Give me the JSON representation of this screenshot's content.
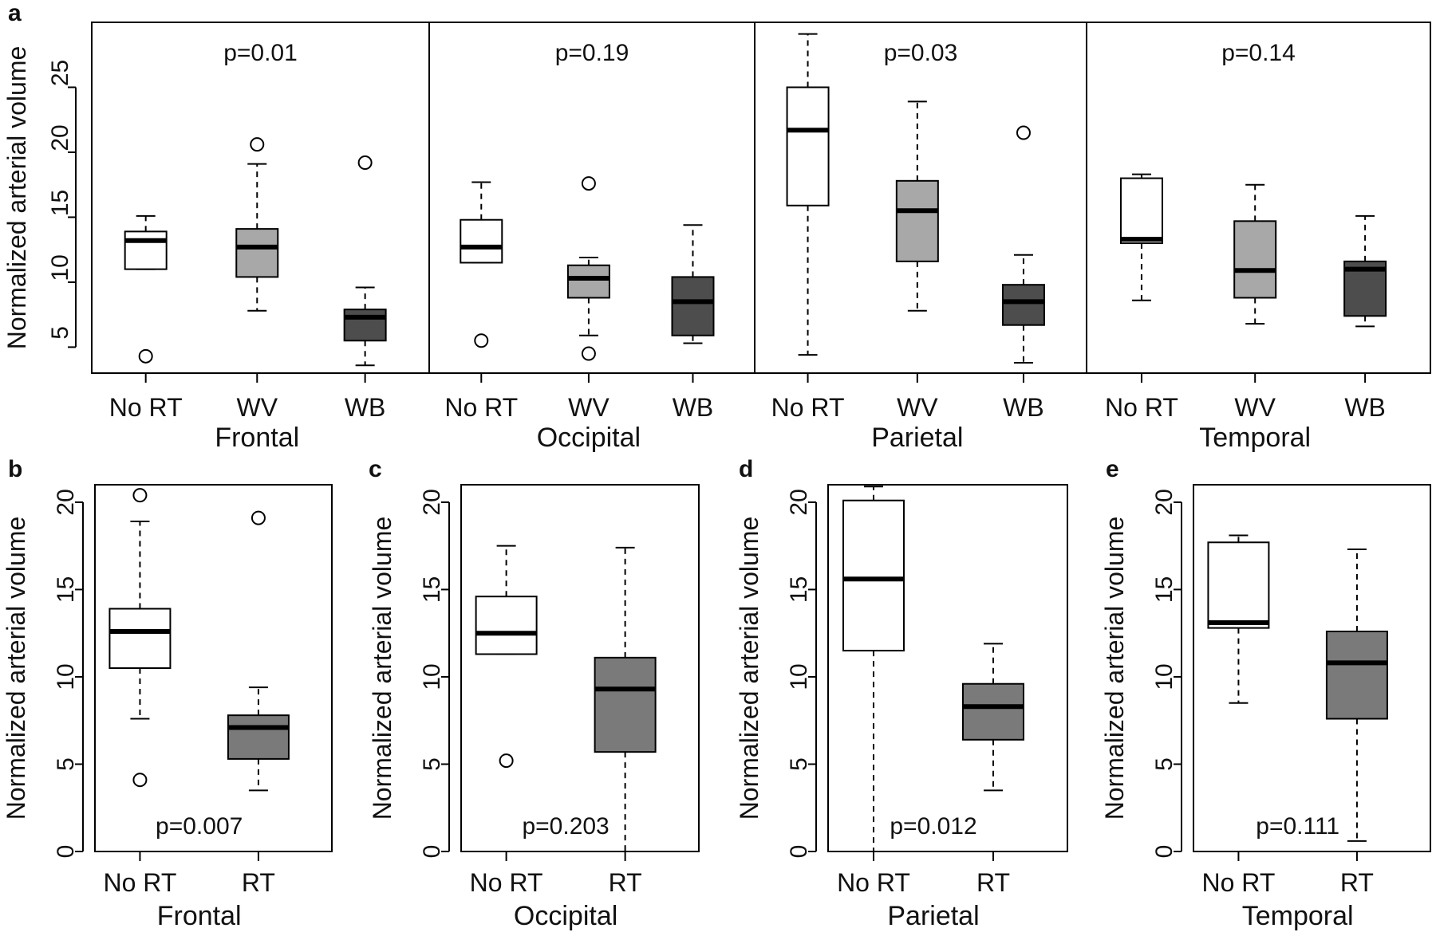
{
  "colors": {
    "none": "#ffffff",
    "wv": "#a8a8a8",
    "wb": "#4d4d4d",
    "rt": "#7a7a7a",
    "line": "#000000"
  },
  "chart_data": [
    {
      "panel": "a",
      "type": "boxplot",
      "ylabel": "Normalized arterial volume",
      "ylim": [
        3,
        30
      ],
      "yticks": [
        5,
        10,
        15,
        20,
        25
      ],
      "categories": [
        "No RT",
        "WV",
        "WB"
      ],
      "fills": [
        "none",
        "wv",
        "wb"
      ],
      "facets": [
        {
          "region": "Frontal",
          "p": "p=0.01",
          "boxes": [
            {
              "min": 11.0,
              "q1": 11.0,
              "median": 13.2,
              "q3": 13.9,
              "max": 15.1,
              "outliers": [
                4.3
              ]
            },
            {
              "min": 7.8,
              "q1": 10.4,
              "median": 12.7,
              "q3": 14.1,
              "max": 19.1,
              "outliers": [
                20.6
              ]
            },
            {
              "min": 3.6,
              "q1": 5.5,
              "median": 7.3,
              "q3": 7.9,
              "max": 9.6,
              "outliers": [
                19.2
              ]
            }
          ]
        },
        {
          "region": "Occipital",
          "p": "p=0.19",
          "boxes": [
            {
              "min": 11.5,
              "q1": 11.5,
              "median": 12.7,
              "q3": 14.8,
              "max": 17.7,
              "outliers": [
                5.5
              ]
            },
            {
              "min": 5.9,
              "q1": 8.8,
              "median": 10.3,
              "q3": 11.3,
              "max": 11.9,
              "outliers": [
                4.5,
                17.6
              ]
            },
            {
              "min": 5.3,
              "q1": 5.9,
              "median": 8.5,
              "q3": 10.4,
              "max": 14.4,
              "outliers": []
            }
          ]
        },
        {
          "region": "Parietal",
          "p": "p=0.03",
          "boxes": [
            {
              "min": 4.4,
              "q1": 15.9,
              "median": 21.7,
              "q3": 25.0,
              "max": 29.1,
              "outliers": []
            },
            {
              "min": 7.8,
              "q1": 11.6,
              "median": 15.5,
              "q3": 17.8,
              "max": 23.9,
              "outliers": []
            },
            {
              "min": 3.8,
              "q1": 6.7,
              "median": 8.5,
              "q3": 9.8,
              "max": 12.1,
              "outliers": [
                21.5
              ]
            }
          ]
        },
        {
          "region": "Temporal",
          "p": "p=0.14",
          "boxes": [
            {
              "min": 8.6,
              "q1": 13.0,
              "median": 13.3,
              "q3": 18.0,
              "max": 18.3,
              "outliers": []
            },
            {
              "min": 6.8,
              "q1": 8.8,
              "median": 10.9,
              "q3": 14.7,
              "max": 17.5,
              "outliers": []
            },
            {
              "min": 6.6,
              "q1": 7.4,
              "median": 11.0,
              "q3": 11.6,
              "max": 15.1,
              "outliers": []
            }
          ]
        }
      ]
    },
    {
      "panel": "b",
      "type": "boxplot",
      "region": "Frontal",
      "p": "p=0.007",
      "ylabel": "Normalized arterial volume",
      "ylim": [
        0,
        21
      ],
      "yticks": [
        0,
        5,
        10,
        15,
        20
      ],
      "categories": [
        "No RT",
        "RT"
      ],
      "fills": [
        "none",
        "rt"
      ],
      "boxes": [
        {
          "min": 7.6,
          "q1": 10.5,
          "median": 12.6,
          "q3": 13.9,
          "max": 18.9,
          "outliers": [
            4.1,
            20.4
          ]
        },
        {
          "min": 3.5,
          "q1": 5.3,
          "median": 7.1,
          "q3": 7.8,
          "max": 9.4,
          "outliers": [
            19.1
          ]
        }
      ]
    },
    {
      "panel": "c",
      "type": "boxplot",
      "region": "Occipital",
      "p": "p=0.203",
      "ylabel": "Normalized arterial volume",
      "ylim": [
        0,
        21
      ],
      "yticks": [
        0,
        5,
        10,
        15,
        20
      ],
      "categories": [
        "No RT",
        "RT"
      ],
      "fills": [
        "none",
        "rt"
      ],
      "boxes": [
        {
          "min": 11.3,
          "q1": 11.3,
          "median": 12.5,
          "q3": 14.6,
          "max": 17.5,
          "outliers": [
            5.2
          ]
        },
        {
          "min": 0.0,
          "q1": 5.7,
          "median": 9.3,
          "q3": 11.1,
          "max": 17.4,
          "outliers": []
        }
      ]
    },
    {
      "panel": "d",
      "type": "boxplot",
      "region": "Parietal",
      "p": "p=0.012",
      "ylabel": "Normalized arterial volume",
      "ylim": [
        0,
        21
      ],
      "yticks": [
        0,
        5,
        10,
        15,
        20
      ],
      "categories": [
        "No RT",
        "RT"
      ],
      "fills": [
        "none",
        "rt"
      ],
      "boxes": [
        {
          "min": 0.0,
          "q1": 11.5,
          "median": 15.6,
          "q3": 20.1,
          "max": 20.9,
          "outliers": []
        },
        {
          "min": 3.5,
          "q1": 6.4,
          "median": 8.3,
          "q3": 9.6,
          "max": 11.9,
          "outliers": []
        }
      ]
    },
    {
      "panel": "e",
      "type": "boxplot",
      "region": "Temporal",
      "p": "p=0.111",
      "ylabel": "Normalized arterial volume",
      "ylim": [
        0,
        21
      ],
      "yticks": [
        0,
        5,
        10,
        15,
        20
      ],
      "categories": [
        "No RT",
        "RT"
      ],
      "fills": [
        "none",
        "rt"
      ],
      "boxes": [
        {
          "min": 8.5,
          "q1": 12.8,
          "median": 13.1,
          "q3": 17.7,
          "max": 18.1,
          "outliers": []
        },
        {
          "min": 0.6,
          "q1": 7.6,
          "median": 10.8,
          "q3": 12.6,
          "max": 17.3,
          "outliers": []
        }
      ]
    }
  ]
}
